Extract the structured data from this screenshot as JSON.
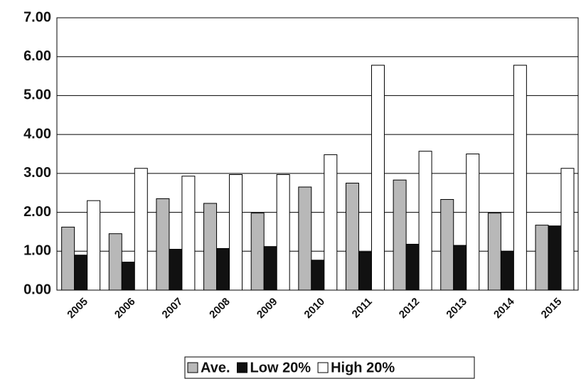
{
  "chart_data": {
    "type": "bar",
    "categories": [
      "2005",
      "2006",
      "2007",
      "2008",
      "2009",
      "2010",
      "2011",
      "2012",
      "2013",
      "2014",
      "2015"
    ],
    "series": [
      {
        "name": "Ave.",
        "color": "#b8b8b8",
        "values": [
          1.62,
          1.45,
          2.35,
          2.23,
          1.98,
          2.65,
          2.75,
          2.83,
          2.33,
          1.98,
          1.67
        ]
      },
      {
        "name": "Low 20%",
        "color": "#111111",
        "values": [
          0.9,
          0.72,
          1.05,
          1.07,
          1.12,
          0.77,
          0.98,
          1.18,
          1.15,
          1.0,
          1.65
        ]
      },
      {
        "name": "High 20%",
        "color": "#ffffff",
        "values": [
          2.3,
          3.13,
          2.93,
          2.97,
          2.97,
          3.48,
          5.78,
          3.57,
          3.5,
          5.78,
          3.13
        ]
      }
    ],
    "ylim": [
      0,
      7
    ],
    "yticks": [
      {
        "value": 0,
        "label": "0.00"
      },
      {
        "value": 1,
        "label": "1.00"
      },
      {
        "value": 2,
        "label": "2.00"
      },
      {
        "value": 3,
        "label": "3.00"
      },
      {
        "value": 4,
        "label": "4.00"
      },
      {
        "value": 5,
        "label": "5.00"
      },
      {
        "value": 6,
        "label": "6.00"
      },
      {
        "value": 7,
        "label": "7.00"
      }
    ],
    "grid": true,
    "legend": "bottom"
  }
}
